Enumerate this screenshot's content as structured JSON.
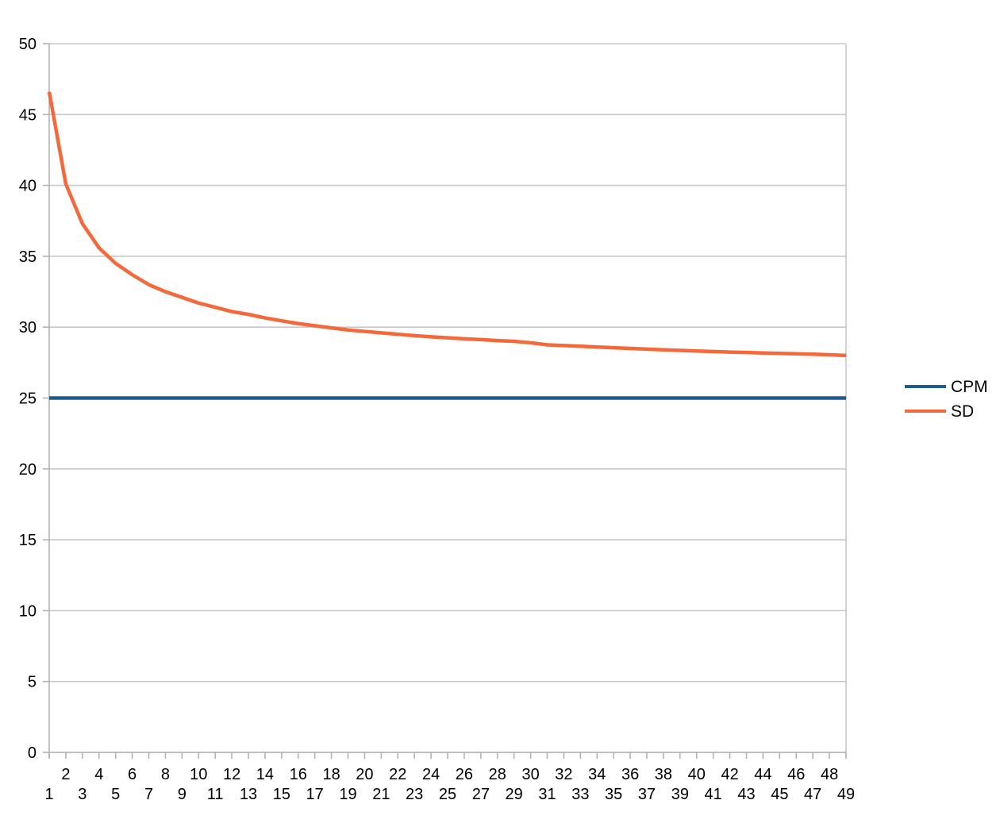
{
  "chart_data": {
    "type": "line",
    "title": "",
    "xlabel": "",
    "ylabel": "",
    "x": [
      1,
      2,
      3,
      4,
      5,
      6,
      7,
      8,
      9,
      10,
      11,
      12,
      13,
      14,
      15,
      16,
      17,
      18,
      19,
      20,
      21,
      22,
      23,
      24,
      25,
      26,
      27,
      28,
      29,
      30,
      31,
      32,
      33,
      34,
      35,
      36,
      37,
      38,
      39,
      40,
      41,
      42,
      43,
      44,
      45,
      46,
      47,
      48,
      49
    ],
    "xlim": [
      1,
      49
    ],
    "ylim": [
      0,
      50
    ],
    "y_ticks": [
      0,
      5,
      10,
      15,
      20,
      25,
      30,
      35,
      40,
      45,
      50
    ],
    "grid": true,
    "legend_position": "right",
    "series": [
      {
        "name": "CPM",
        "color": "#1f5b93",
        "values": [
          25,
          25,
          25,
          25,
          25,
          25,
          25,
          25,
          25,
          25,
          25,
          25,
          25,
          25,
          25,
          25,
          25,
          25,
          25,
          25,
          25,
          25,
          25,
          25,
          25,
          25,
          25,
          25,
          25,
          25,
          25,
          25,
          25,
          25,
          25,
          25,
          25,
          25,
          25,
          25,
          25,
          25,
          25,
          25,
          25,
          25,
          25,
          25,
          25
        ]
      },
      {
        "name": "SD",
        "color": "#f4683a",
        "values": [
          46.6,
          40.1,
          37.3,
          35.6,
          34.5,
          33.7,
          33.0,
          32.5,
          32.1,
          31.7,
          31.4,
          31.1,
          30.9,
          30.65,
          30.45,
          30.25,
          30.1,
          29.95,
          29.8,
          29.7,
          29.6,
          29.5,
          29.4,
          29.32,
          29.25,
          29.18,
          29.12,
          29.05,
          29.0,
          28.9,
          28.75,
          28.7,
          28.65,
          28.6,
          28.55,
          28.5,
          28.45,
          28.4,
          28.36,
          28.32,
          28.28,
          28.24,
          28.21,
          28.18,
          28.15,
          28.12,
          28.09,
          28.05,
          28.0
        ]
      }
    ]
  }
}
